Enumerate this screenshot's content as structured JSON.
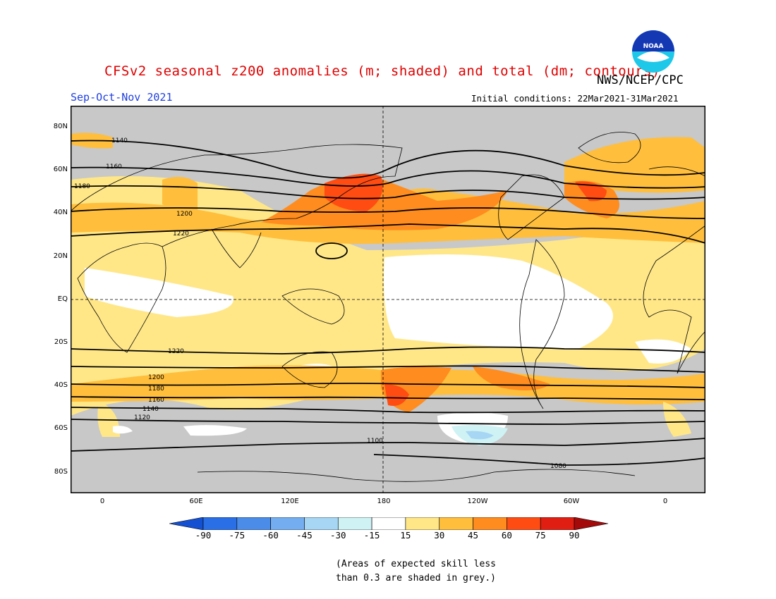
{
  "title": "CFSv2 seasonal z200 anomalies (m; shaded) and total (dm; contours)",
  "organization": "NWS/NCEP/CPC",
  "season": "Sep-Oct-Nov 2021",
  "initial_conditions": "Initial conditions: 22Mar2021-31Mar2021",
  "logo_text": "NOAA",
  "latitude_labels": [
    "80N",
    "60N",
    "40N",
    "20N",
    "EQ",
    "20S",
    "40S",
    "60S",
    "80S"
  ],
  "longitude_labels": [
    "0",
    "60E",
    "120E",
    "180",
    "120W",
    "60W",
    "0"
  ],
  "colorbar": {
    "labels": [
      "-90",
      "-75",
      "-60",
      "-45",
      "-30",
      "-15",
      "15",
      "30",
      "45",
      "60",
      "75",
      "90"
    ],
    "colors": [
      "#1450d2",
      "#2a6fe6",
      "#4a8ce8",
      "#74aef0",
      "#a6d6f4",
      "#cff2f4",
      "#ffffff",
      "#ffe788",
      "#ffbe3c",
      "#ff8c1e",
      "#ff4c12",
      "#e01e12",
      "#a40a0a"
    ]
  },
  "contour_labels": [
    "1140",
    "1160",
    "1180",
    "1200",
    "1220",
    "1220",
    "1200",
    "1180",
    "1160",
    "1140",
    "1120",
    "1100",
    "1080"
  ],
  "skill_note": "(Areas of expected skill less\nthan 0.3 are shaded in grey.)"
}
